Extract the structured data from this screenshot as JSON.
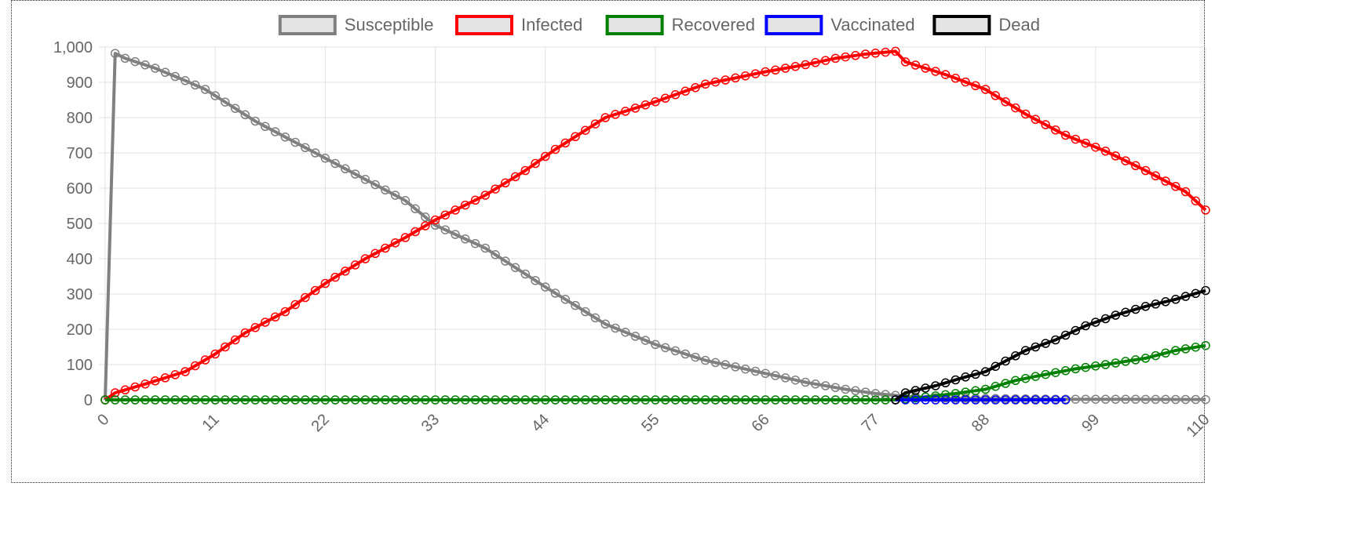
{
  "chart_data": {
    "type": "line",
    "x_ticks": [
      0,
      11,
      22,
      33,
      44,
      55,
      66,
      77,
      88,
      99,
      110
    ],
    "y_ticks": [
      "0",
      "100",
      "200",
      "300",
      "400",
      "500",
      "600",
      "700",
      "800",
      "900",
      "1,000"
    ],
    "x_range": [
      0,
      110
    ],
    "ylim": [
      0,
      1000
    ],
    "grid": true,
    "legend_position": "top",
    "series": [
      {
        "name": "Susceptible",
        "color": "#808080",
        "points": [
          [
            0,
            0
          ],
          [
            1,
            982
          ],
          [
            2,
            968
          ],
          [
            5,
            940
          ],
          [
            8,
            905
          ],
          [
            10,
            880
          ],
          [
            11,
            862
          ],
          [
            15,
            790
          ],
          [
            20,
            715
          ],
          [
            25,
            640
          ],
          [
            30,
            565
          ],
          [
            33,
            495
          ],
          [
            38,
            430
          ],
          [
            44,
            320
          ],
          [
            50,
            215
          ],
          [
            55,
            157
          ],
          [
            60,
            112
          ],
          [
            66,
            75
          ],
          [
            70,
            50
          ],
          [
            74,
            30
          ],
          [
            77,
            18
          ],
          [
            80,
            10
          ],
          [
            84,
            5
          ],
          [
            88,
            4
          ],
          [
            95,
            2
          ],
          [
            110,
            1
          ]
        ]
      },
      {
        "name": "Infected",
        "color": "#ff0000",
        "points": [
          [
            0,
            0
          ],
          [
            1,
            20
          ],
          [
            4,
            45
          ],
          [
            8,
            80
          ],
          [
            11,
            130
          ],
          [
            14,
            190
          ],
          [
            18,
            250
          ],
          [
            22,
            330
          ],
          [
            26,
            400
          ],
          [
            30,
            460
          ],
          [
            33,
            510
          ],
          [
            38,
            580
          ],
          [
            42,
            650
          ],
          [
            45,
            710
          ],
          [
            50,
            800
          ],
          [
            55,
            845
          ],
          [
            60,
            895
          ],
          [
            66,
            930
          ],
          [
            70,
            950
          ],
          [
            73,
            968
          ],
          [
            76,
            980
          ],
          [
            79,
            988
          ],
          [
            80,
            958
          ],
          [
            84,
            922
          ],
          [
            88,
            880
          ],
          [
            92,
            810
          ],
          [
            96,
            750
          ],
          [
            100,
            705
          ],
          [
            104,
            650
          ],
          [
            108,
            590
          ],
          [
            110,
            538
          ]
        ]
      },
      {
        "name": "Recovered",
        "color": "#008000",
        "points": [
          [
            0,
            0
          ],
          [
            79,
            0
          ],
          [
            82,
            8
          ],
          [
            85,
            18
          ],
          [
            88,
            30
          ],
          [
            91,
            55
          ],
          [
            94,
            72
          ],
          [
            97,
            88
          ],
          [
            100,
            100
          ],
          [
            104,
            118
          ],
          [
            107,
            140
          ],
          [
            110,
            154
          ]
        ]
      },
      {
        "name": "Vaccinated",
        "color": "#0000ff",
        "points": [
          [
            79,
            0
          ],
          [
            80,
            0
          ],
          [
            88,
            0
          ],
          [
            96,
            0
          ]
        ]
      },
      {
        "name": "Dead",
        "color": "#000000",
        "points": [
          [
            79,
            0
          ],
          [
            80,
            20
          ],
          [
            83,
            40
          ],
          [
            86,
            65
          ],
          [
            88,
            80
          ],
          [
            90,
            110
          ],
          [
            92,
            140
          ],
          [
            95,
            170
          ],
          [
            98,
            210
          ],
          [
            101,
            240
          ],
          [
            104,
            265
          ],
          [
            107,
            285
          ],
          [
            110,
            310
          ]
        ]
      }
    ]
  }
}
